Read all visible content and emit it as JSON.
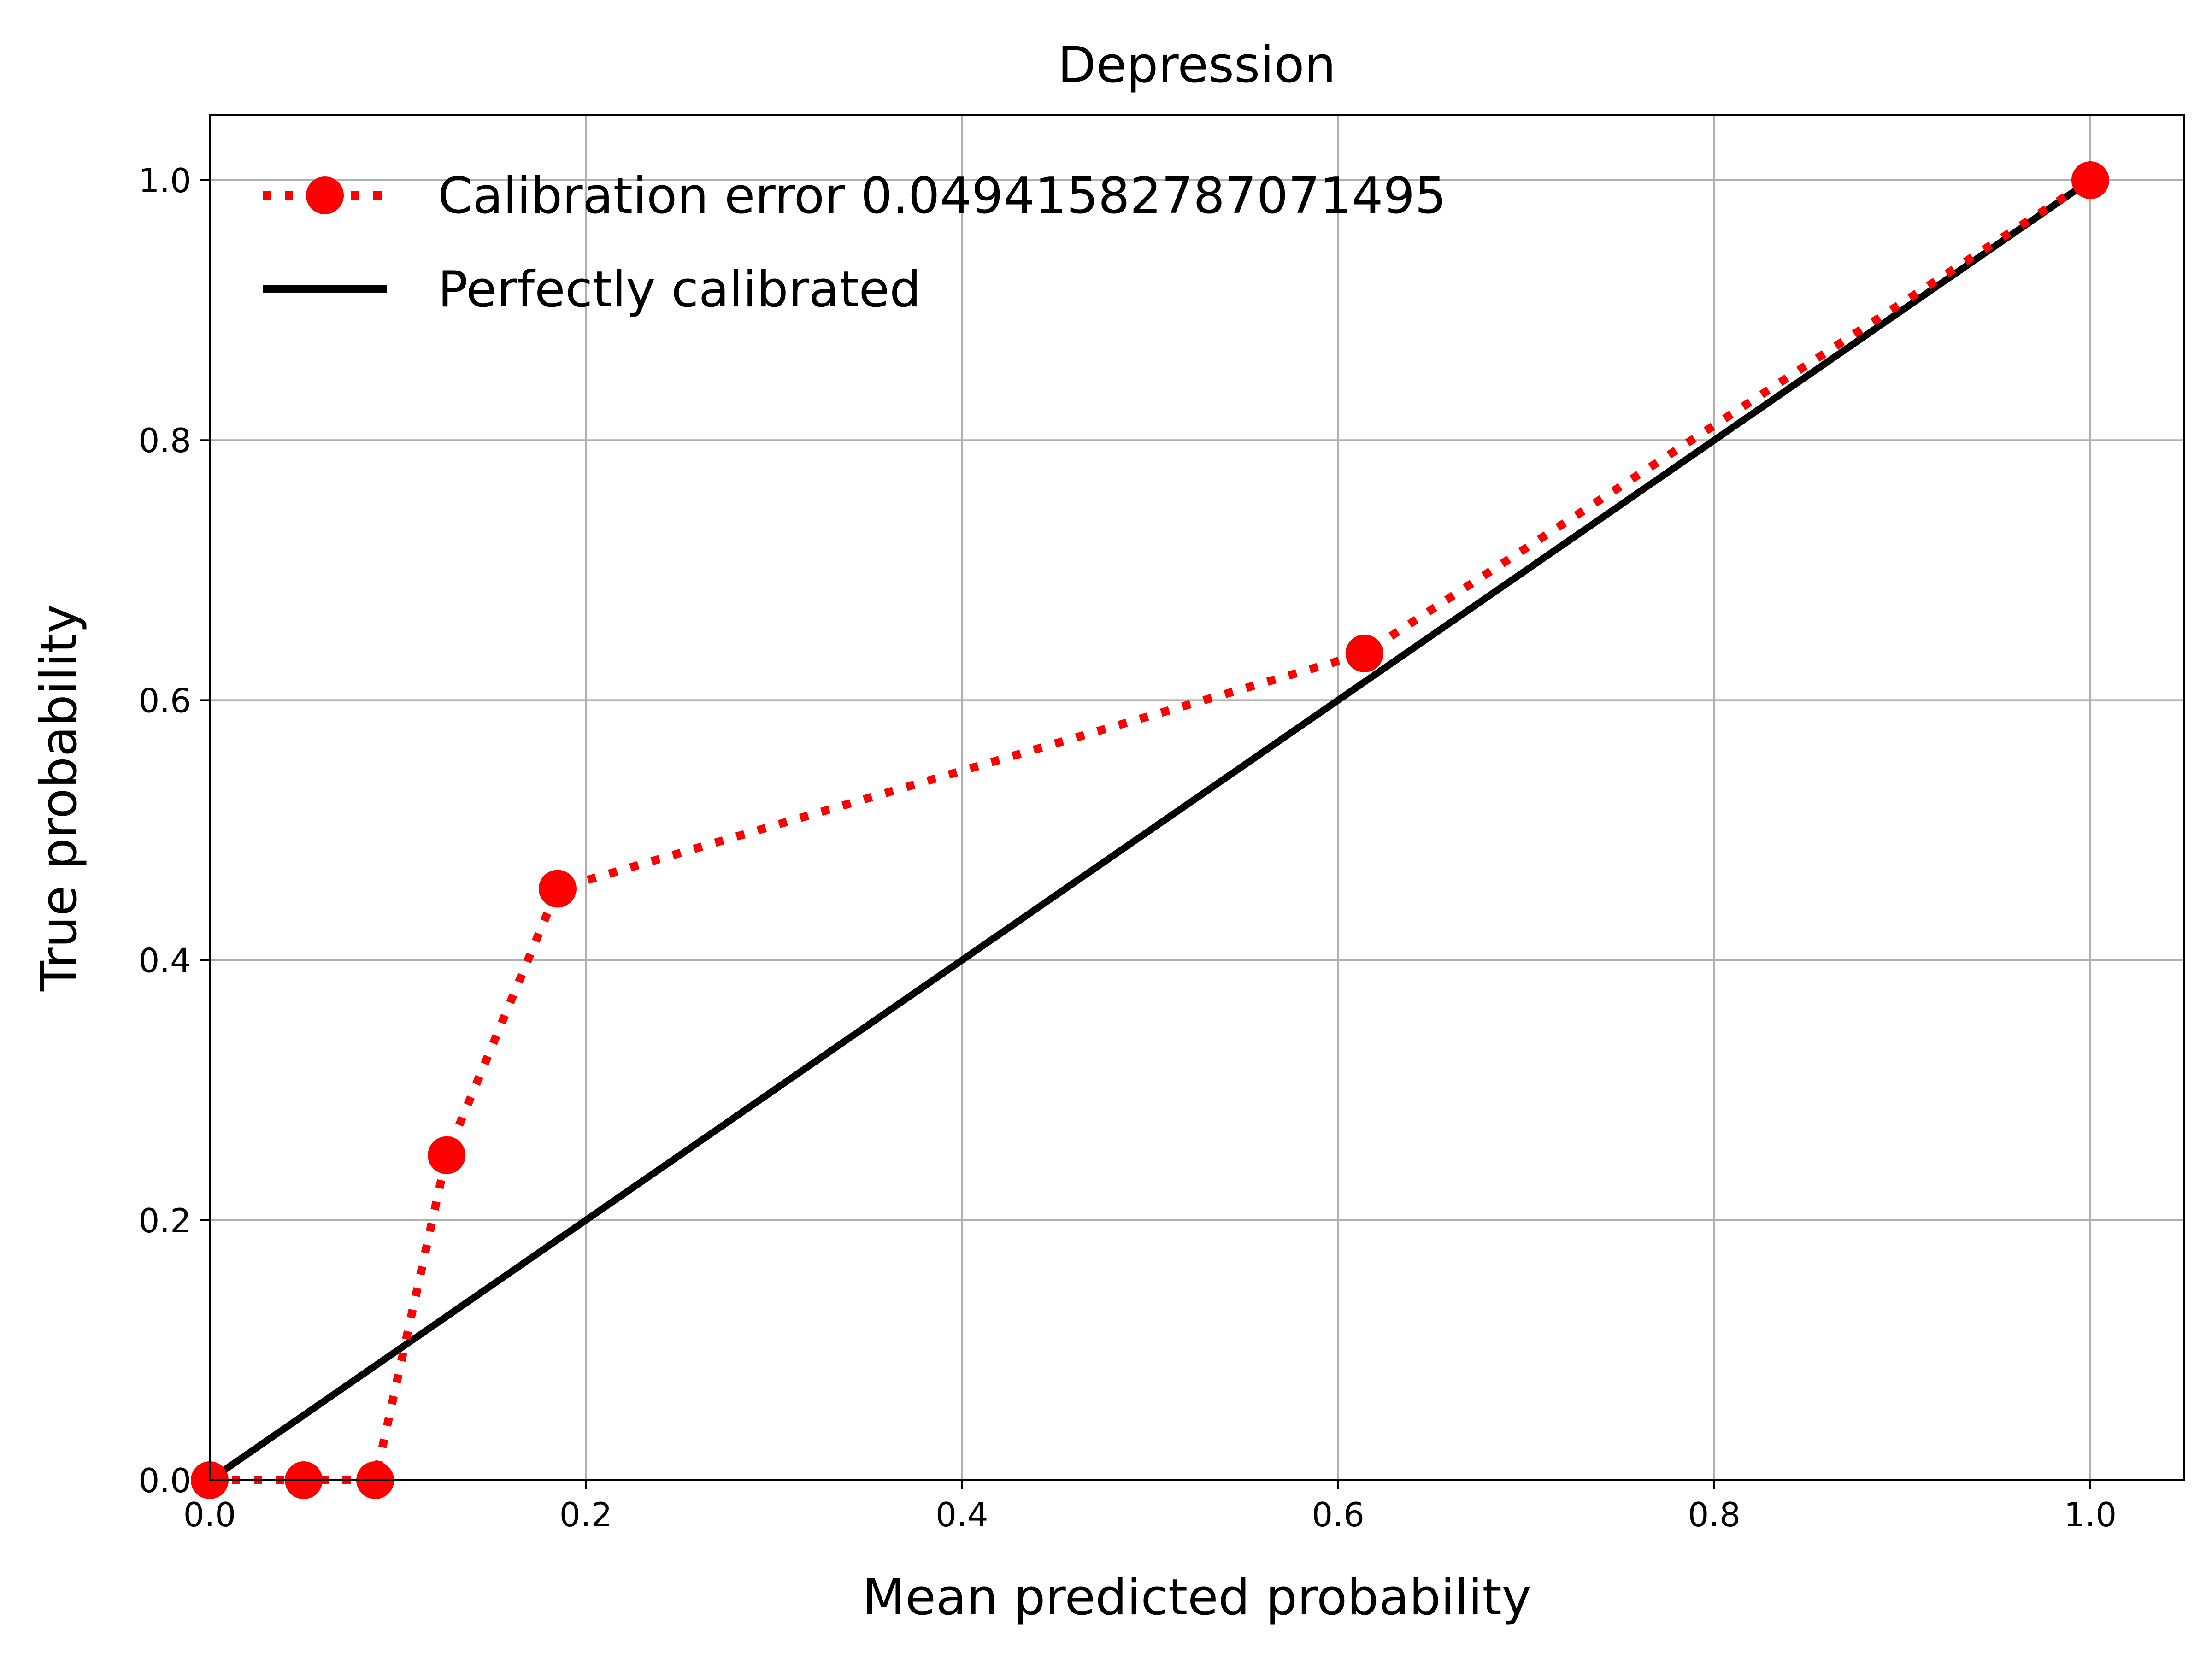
{
  "chart_data": {
    "type": "line",
    "title": "Depression",
    "xlabel": "Mean predicted probability",
    "ylabel": "True probability",
    "xlim": [
      0.0,
      1.05
    ],
    "ylim": [
      0.0,
      1.05
    ],
    "xticks": [
      "0.0",
      "0.2",
      "0.4",
      "0.6",
      "0.8",
      "1.0"
    ],
    "yticks": [
      "0.0",
      "0.2",
      "0.4",
      "0.6",
      "0.8",
      "1.0"
    ],
    "grid": true,
    "legend_position": "top-left",
    "series": [
      {
        "name": "Calibration error 0.04941582787071495",
        "color": "#ff0000",
        "style": "dotted",
        "marker": "circle",
        "x": [
          0.0,
          0.05,
          0.088,
          0.126,
          0.185,
          0.614,
          1.0
        ],
        "y": [
          0.0,
          0.0,
          0.0,
          0.25,
          0.455,
          0.636,
          1.0
        ]
      },
      {
        "name": "Perfectly calibrated",
        "color": "#000000",
        "style": "solid",
        "marker": "none",
        "x": [
          0.0,
          1.0
        ],
        "y": [
          0.0,
          1.0
        ]
      }
    ]
  }
}
